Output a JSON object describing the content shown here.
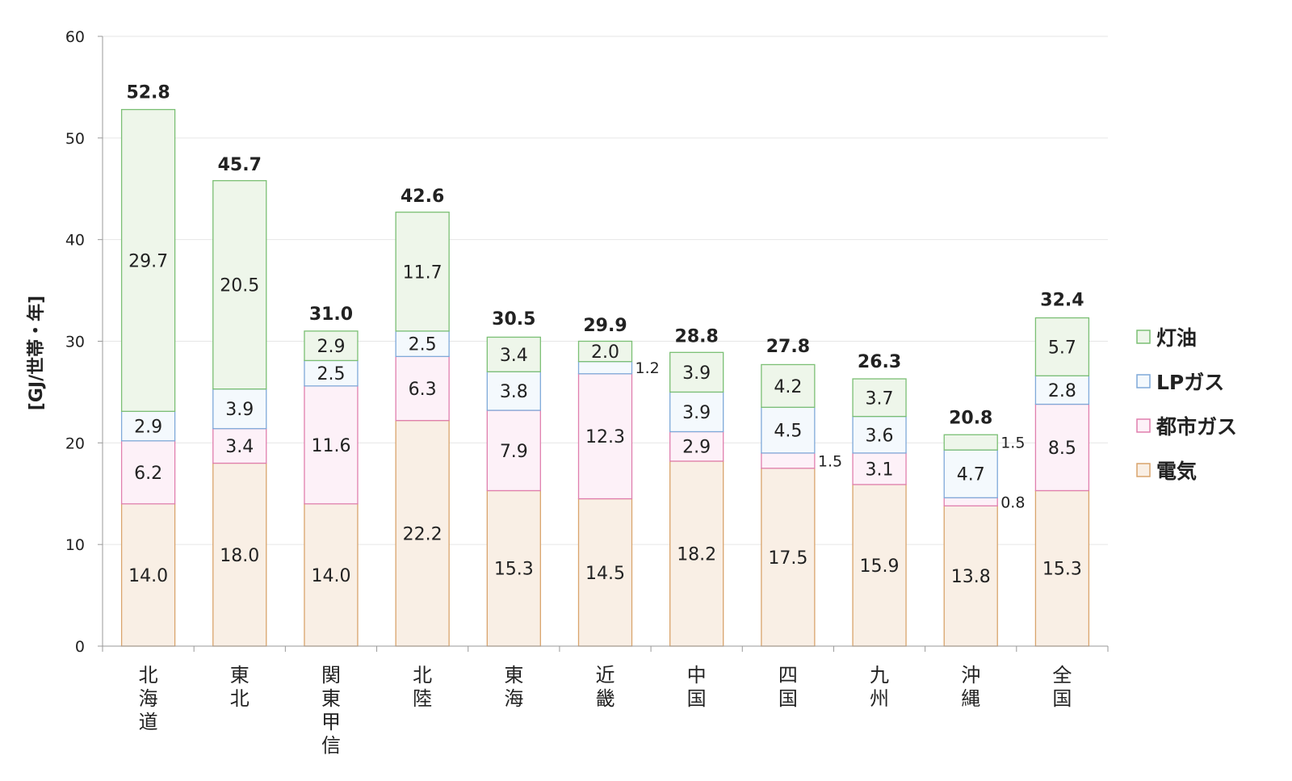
{
  "chart_data": {
    "type": "bar",
    "stacked": true,
    "title": "",
    "xlabel": "",
    "ylabel": "[GJ/世帯・年]",
    "ylim": [
      0,
      60
    ],
    "yticks": [
      0,
      10,
      20,
      30,
      40,
      50,
      60
    ],
    "grid": true,
    "legend_position": "right",
    "categories": [
      "北海道",
      "東北",
      "関東甲信",
      "北陸",
      "東海",
      "近畿",
      "中国",
      "四国",
      "九州",
      "沖縄",
      "全国"
    ],
    "series": [
      {
        "name": "電気",
        "values": [
          14.0,
          18.0,
          14.0,
          22.2,
          15.3,
          14.5,
          18.2,
          17.5,
          15.9,
          13.8,
          15.3
        ],
        "labels": [
          "14.0",
          "18.0",
          "14.0",
          "22.2",
          "15.3",
          "14.5",
          "18.2",
          "17.5",
          "15.9",
          "13.8",
          "15.3"
        ],
        "fill": "#f9efe5",
        "stroke": "#d9a46c"
      },
      {
        "name": "都市ガス",
        "values": [
          6.2,
          3.4,
          11.6,
          6.3,
          7.9,
          12.3,
          2.9,
          1.5,
          3.1,
          0.8,
          8.5
        ],
        "labels": [
          "6.2",
          "3.4",
          "11.6",
          "6.3",
          "7.9",
          "12.3",
          "2.9",
          "1.5",
          "3.1",
          "0.8",
          "8.5"
        ],
        "fill": "#fdf1f8",
        "stroke": "#e07fae"
      },
      {
        "name": "LPガス",
        "values": [
          2.9,
          3.9,
          2.5,
          2.5,
          3.8,
          1.2,
          3.9,
          4.5,
          3.6,
          4.7,
          2.8
        ],
        "labels": [
          "2.9",
          "3.9",
          "2.5",
          "2.5",
          "3.8",
          "1.2",
          "3.9",
          "4.5",
          "3.6",
          "4.7",
          "2.8"
        ],
        "fill": "#f4f9fd",
        "stroke": "#7fa9d9"
      },
      {
        "name": "灯油",
        "values": [
          29.7,
          20.5,
          2.9,
          11.7,
          3.4,
          2.0,
          3.9,
          4.2,
          3.7,
          1.5,
          5.7
        ],
        "labels": [
          "29.7",
          "20.5",
          "2.9",
          "11.7",
          "3.4",
          "2.0",
          "3.9",
          "4.2",
          "3.7",
          "1.5",
          "5.7"
        ],
        "fill": "#eef6ea",
        "stroke": "#7bbf74"
      }
    ],
    "totals": [
      52.8,
      45.7,
      31.0,
      42.6,
      30.5,
      29.9,
      28.8,
      27.8,
      26.3,
      20.8,
      32.4
    ],
    "total_labels": [
      "52.8",
      "45.7",
      "31.0",
      "42.6",
      "30.5",
      "29.9",
      "28.8",
      "27.8",
      "26.3",
      "20.8",
      "32.4"
    ],
    "legend_order": [
      "灯油",
      "LPガス",
      "都市ガス",
      "電気"
    ]
  }
}
